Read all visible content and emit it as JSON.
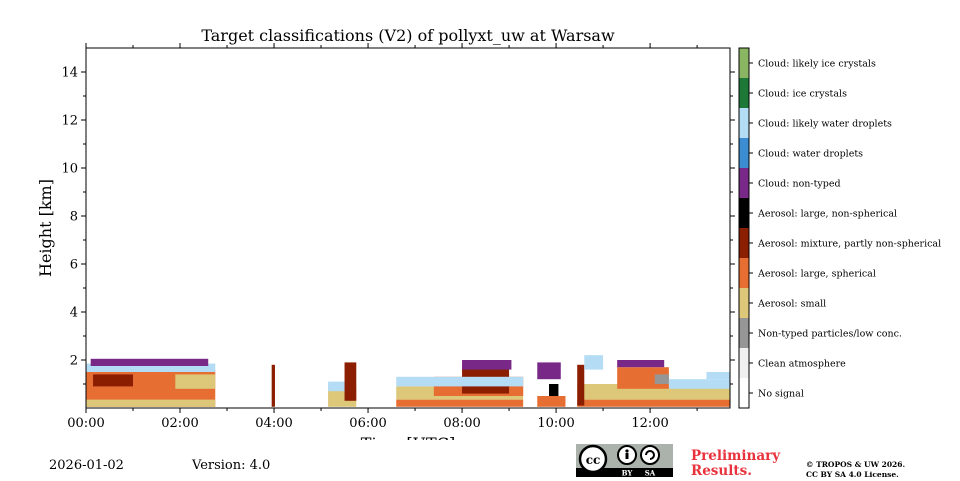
{
  "chart_data": {
    "type": "heatmap",
    "title": "Target classifications (V2) of pollyxt_uw at Warsaw",
    "xlabel": "Time [UTC]",
    "ylabel": "Height [km]",
    "xlim": [
      0,
      13.7
    ],
    "ylim": [
      0,
      15
    ],
    "x_ticks": [
      {
        "value": 0,
        "label": "00:00"
      },
      {
        "value": 2,
        "label": "02:00"
      },
      {
        "value": 4,
        "label": "04:00"
      },
      {
        "value": 6,
        "label": "06:00"
      },
      {
        "value": 8,
        "label": "08:00"
      },
      {
        "value": 10,
        "label": "10:00"
      },
      {
        "value": 12,
        "label": "12:00"
      }
    ],
    "y_ticks": [
      {
        "value": 2,
        "label": "2"
      },
      {
        "value": 4,
        "label": "4"
      },
      {
        "value": 6,
        "label": "6"
      },
      {
        "value": 8,
        "label": "8"
      },
      {
        "value": 10,
        "label": "10"
      },
      {
        "value": 12,
        "label": "12"
      },
      {
        "value": 14,
        "label": "14"
      }
    ],
    "classes": [
      {
        "label": "Cloud: likely ice crystals",
        "color": "#8ab663"
      },
      {
        "label": "Cloud: ice crystals",
        "color": "#1e7838"
      },
      {
        "label": "Cloud: likely water droplets",
        "color": "#b4dcf5"
      },
      {
        "label": "Cloud: water droplets",
        "color": "#3c8cd2"
      },
      {
        "label": "Cloud: non-typed",
        "color": "#782887"
      },
      {
        "label": "Aerosol: large, non-spherical",
        "color": "#000000"
      },
      {
        "label": "Aerosol: mixture, partly non-spherical",
        "color": "#8c1e00"
      },
      {
        "label": "Aerosol: large, spherical",
        "color": "#e66e32"
      },
      {
        "label": "Aerosol: small",
        "color": "#dcc878"
      },
      {
        "label": "Non-typed particles/low conc.",
        "color": "#969696"
      },
      {
        "label": "Clean atmosphere",
        "color": "#f0f0f0"
      },
      {
        "label": "No signal",
        "color": "#ffffff"
      }
    ],
    "regions": [
      {
        "class": "Aerosol: large, spherical",
        "t0": 0.0,
        "t1": 2.75,
        "h0": 0.05,
        "h1": 1.6
      },
      {
        "class": "Aerosol: small",
        "t0": 0.0,
        "t1": 2.75,
        "h0": 0.05,
        "h1": 0.35
      },
      {
        "class": "Aerosol: mixture, partly non-spherical",
        "t0": 0.15,
        "t1": 1.0,
        "h0": 0.9,
        "h1": 1.4
      },
      {
        "class": "Cloud: likely water droplets",
        "t0": 0.0,
        "t1": 2.75,
        "h0": 1.5,
        "h1": 1.85
      },
      {
        "class": "Cloud: non-typed",
        "t0": 0.1,
        "t1": 2.6,
        "h0": 1.75,
        "h1": 2.05
      },
      {
        "class": "Aerosol: small",
        "t0": 1.9,
        "t1": 2.75,
        "h0": 0.8,
        "h1": 1.4
      },
      {
        "class": "Aerosol: mixture, partly non-spherical",
        "t0": 3.95,
        "t1": 4.02,
        "h0": 0.05,
        "h1": 1.8
      },
      {
        "class": "Aerosol: small",
        "t0": 5.15,
        "t1": 5.75,
        "h0": 0.05,
        "h1": 0.9
      },
      {
        "class": "Cloud: likely water droplets",
        "t0": 5.15,
        "t1": 5.5,
        "h0": 0.7,
        "h1": 1.1
      },
      {
        "class": "Aerosol: mixture, partly non-spherical",
        "t0": 5.5,
        "t1": 5.75,
        "h0": 0.3,
        "h1": 1.9
      },
      {
        "class": "Aerosol: large, spherical",
        "t0": 6.6,
        "t1": 9.3,
        "h0": 0.05,
        "h1": 0.35
      },
      {
        "class": "Aerosol: small",
        "t0": 6.6,
        "t1": 9.3,
        "h0": 0.35,
        "h1": 0.9
      },
      {
        "class": "Aerosol: large, spherical",
        "t0": 7.4,
        "t1": 9.3,
        "h0": 0.5,
        "h1": 1.3
      },
      {
        "class": "Aerosol: mixture, partly non-spherical",
        "t0": 8.0,
        "t1": 9.0,
        "h0": 0.6,
        "h1": 1.8
      },
      {
        "class": "Cloud: likely water droplets",
        "t0": 6.6,
        "t1": 9.3,
        "h0": 0.9,
        "h1": 1.3
      },
      {
        "class": "Cloud: non-typed",
        "t0": 8.0,
        "t1": 9.05,
        "h0": 1.6,
        "h1": 2.0
      },
      {
        "class": "Aerosol: large, spherical",
        "t0": 9.6,
        "t1": 10.2,
        "h0": 0.05,
        "h1": 0.5
      },
      {
        "class": "Aerosol: large, non-spherical",
        "t0": 9.85,
        "t1": 10.05,
        "h0": 0.5,
        "h1": 1.0
      },
      {
        "class": "Cloud: non-typed",
        "t0": 9.6,
        "t1": 10.1,
        "h0": 1.2,
        "h1": 1.9
      },
      {
        "class": "Aerosol: large, spherical",
        "t0": 10.45,
        "t1": 13.7,
        "h0": 0.05,
        "h1": 0.35
      },
      {
        "class": "Aerosol: small",
        "t0": 10.45,
        "t1": 13.7,
        "h0": 0.35,
        "h1": 1.0
      },
      {
        "class": "Aerosol: mixture, partly non-spherical",
        "t0": 10.45,
        "t1": 10.6,
        "h0": 0.1,
        "h1": 1.8
      },
      {
        "class": "Aerosol: large, spherical",
        "t0": 11.3,
        "t1": 12.4,
        "h0": 0.8,
        "h1": 1.7
      },
      {
        "class": "Non-typed particles/low conc.",
        "t0": 12.1,
        "t1": 12.4,
        "h0": 1.0,
        "h1": 1.4
      },
      {
        "class": "Cloud: likely water droplets",
        "t0": 12.4,
        "t1": 13.7,
        "h0": 0.8,
        "h1": 1.2
      },
      {
        "class": "Cloud: likely water droplets",
        "t0": 13.2,
        "t1": 13.7,
        "h0": 1.2,
        "h1": 1.5
      },
      {
        "class": "Cloud: non-typed",
        "t0": 11.3,
        "t1": 12.3,
        "h0": 1.7,
        "h1": 2.0
      },
      {
        "class": "Cloud: likely water droplets",
        "t0": 10.6,
        "t1": 11.0,
        "h0": 1.6,
        "h1": 2.2
      }
    ]
  },
  "footer": {
    "date": "2026-01-02",
    "version": "Version: 4.0",
    "preliminary_line1": "Preliminary",
    "preliminary_line2": "Results.",
    "copyright_line1": "© TROPOS & UW 2026.",
    "copyright_line2": "CC BY SA 4.0 License.",
    "cc_badge": {
      "cc": "cc",
      "by": "BY",
      "sa": "SA"
    }
  }
}
